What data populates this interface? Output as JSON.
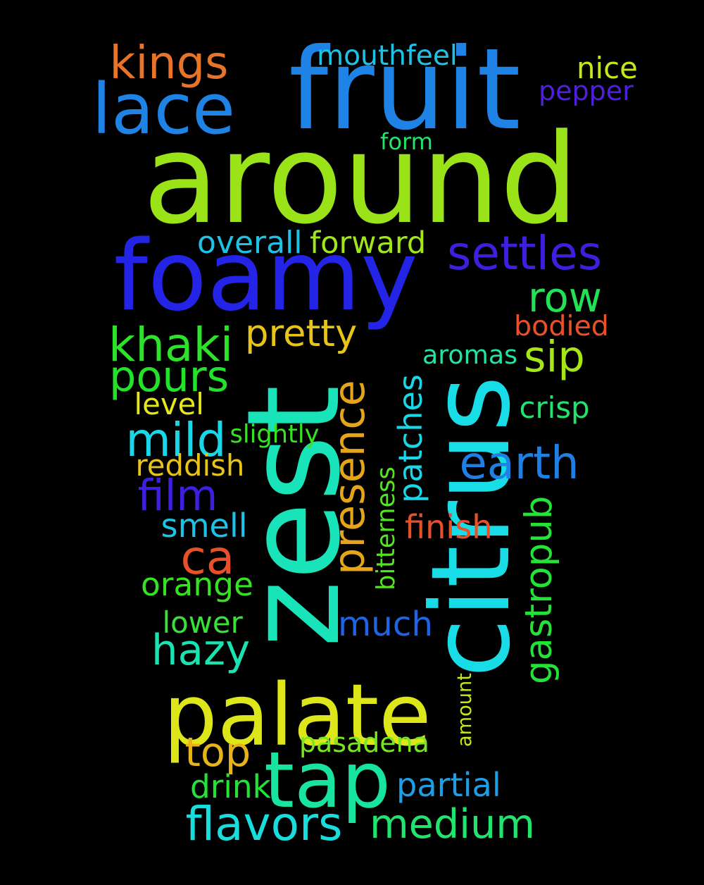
{
  "words": [
    {
      "text": "around",
      "color": "#9be319",
      "vertical": false
    },
    {
      "text": "fruit",
      "color": "#1e83e5",
      "vertical": false
    },
    {
      "text": "foamy",
      "color": "#2424e6",
      "vertical": false
    },
    {
      "text": "citrus",
      "color": "#19dde6",
      "vertical": true
    },
    {
      "text": "zest",
      "color": "#19e3b9",
      "vertical": true
    },
    {
      "text": "palate",
      "color": "#dce619",
      "vertical": false
    },
    {
      "text": "lace",
      "color": "#1e83e5",
      "vertical": false
    },
    {
      "text": "tap",
      "color": "#19e3a0",
      "vertical": false
    },
    {
      "text": "kings",
      "color": "#e8742a",
      "vertical": false
    },
    {
      "text": "settles",
      "color": "#3d1fe0",
      "vertical": false
    },
    {
      "text": "presence",
      "color": "#e6a519",
      "vertical": true
    },
    {
      "text": "medium",
      "color": "#22e36d",
      "vertical": false
    },
    {
      "text": "flavors",
      "color": "#19dddd",
      "vertical": false
    },
    {
      "text": "earth",
      "color": "#1e7fe5",
      "vertical": false
    },
    {
      "text": "khaki",
      "color": "#2be329",
      "vertical": false
    },
    {
      "text": "mild",
      "color": "#19d7e6",
      "vertical": false
    },
    {
      "text": "row",
      "color": "#22e355",
      "vertical": false
    },
    {
      "text": "patches",
      "color": "#19d7e6",
      "vertical": true
    },
    {
      "text": "film",
      "color": "#3d1fe0",
      "vertical": false
    },
    {
      "text": "ca",
      "color": "#e8502a",
      "vertical": false
    },
    {
      "text": "pours",
      "color": "#22e329",
      "vertical": false
    },
    {
      "text": "sip",
      "color": "#a5e619",
      "vertical": false
    },
    {
      "text": "pretty",
      "color": "#e6c419",
      "vertical": false
    },
    {
      "text": "much",
      "color": "#1e64e5",
      "vertical": false
    },
    {
      "text": "hazy",
      "color": "#19e3b0",
      "vertical": false
    },
    {
      "text": "top",
      "color": "#e6b419",
      "vertical": false
    },
    {
      "text": "gastropub",
      "color": "#22e336",
      "vertical": true
    },
    {
      "text": "mouthfeel",
      "color": "#1ec2e5",
      "vertical": false
    },
    {
      "text": "nice",
      "color": "#c8e619",
      "vertical": false
    },
    {
      "text": "pepper",
      "color": "#4f1fe0",
      "vertical": false
    },
    {
      "text": "form",
      "color": "#22e36d",
      "vertical": false
    },
    {
      "text": "overall",
      "color": "#1ec2e5",
      "vertical": false
    },
    {
      "text": "forward",
      "color": "#a0e619",
      "vertical": false
    },
    {
      "text": "bodied",
      "color": "#e8502a",
      "vertical": false
    },
    {
      "text": "aromas",
      "color": "#22e3a0",
      "vertical": false
    },
    {
      "text": "level",
      "color": "#e6e619",
      "vertical": false
    },
    {
      "text": "crisp",
      "color": "#22e36d",
      "vertical": false
    },
    {
      "text": "slightly",
      "color": "#36e322",
      "vertical": false
    },
    {
      "text": "reddish",
      "color": "#e6c419",
      "vertical": false
    },
    {
      "text": "smell",
      "color": "#1ec2e5",
      "vertical": false
    },
    {
      "text": "finish",
      "color": "#e8502a",
      "vertical": false
    },
    {
      "text": "bitterness",
      "color": "#55e322",
      "vertical": true
    },
    {
      "text": "orange",
      "color": "#36e322",
      "vertical": false
    },
    {
      "text": "lower",
      "color": "#36e336",
      "vertical": false
    },
    {
      "text": "amount",
      "color": "#c8e619",
      "vertical": true
    },
    {
      "text": "pasadena",
      "color": "#78e622",
      "vertical": false
    },
    {
      "text": "drink",
      "color": "#22e336",
      "vertical": false
    },
    {
      "text": "partial",
      "color": "#1e9ee5",
      "vertical": false
    }
  ]
}
